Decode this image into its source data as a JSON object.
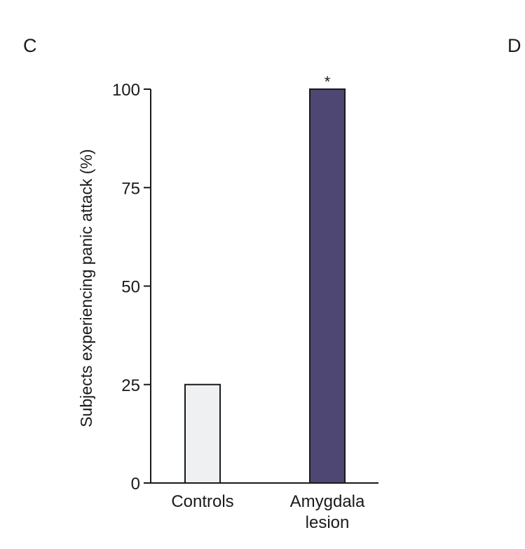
{
  "panels": {
    "left": "C",
    "right": "D"
  },
  "chart_data": {
    "type": "bar",
    "categories": [
      "Controls",
      "Amygdala\nlesion"
    ],
    "values": [
      25,
      100
    ],
    "colors": [
      "#eef0f2",
      "#4e4673"
    ],
    "annotations": [
      {
        "category_index": 1,
        "text": "*"
      }
    ],
    "ylabel": "Subjects experiencing panic attack (%)",
    "xlabel": "",
    "yticks": [
      0,
      25,
      50,
      75,
      100
    ],
    "ylim": [
      0,
      100
    ],
    "grid": false,
    "legend": "none"
  }
}
